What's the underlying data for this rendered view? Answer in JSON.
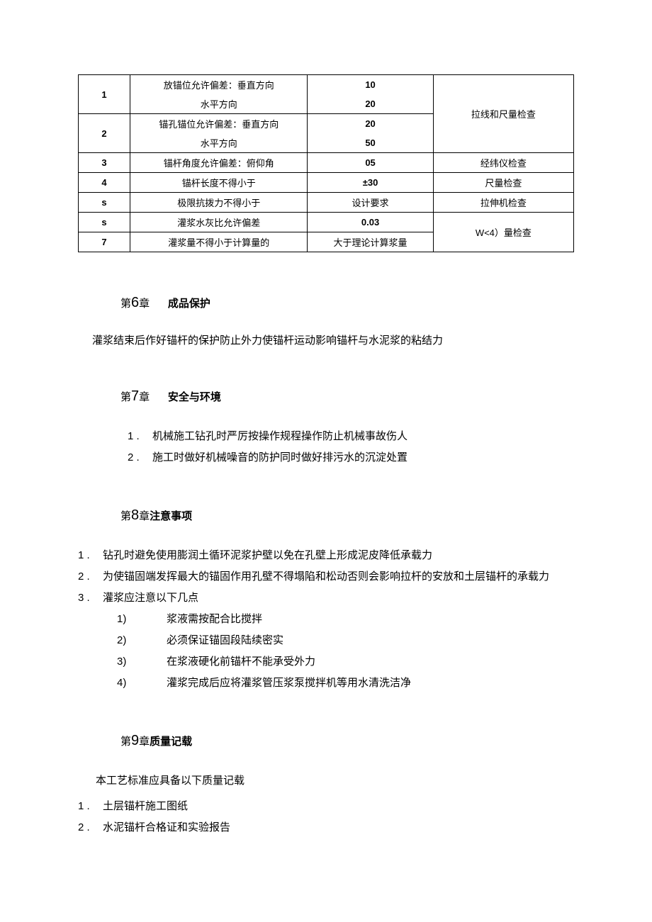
{
  "table": {
    "rows": [
      {
        "idx": "1",
        "item_a": "放锚位允许偏差：垂直方向",
        "val_a": "10",
        "item_b": "水平方向",
        "val_b": "20",
        "method": "拉线和尺量检查",
        "merge_method_with_next": true
      },
      {
        "idx": "2",
        "item_a": "锚孔锚位允许偏差：垂直方向",
        "val_a": "20",
        "item_b": "水平方向",
        "val_b": "50"
      },
      {
        "idx": "3",
        "item": "锚杆角度允许偏差：俯仰角",
        "val": "05",
        "method": "经纬仪检查"
      },
      {
        "idx": "4",
        "item": "锚杆长度不得小于",
        "val": "±30",
        "method": "尺量检查"
      },
      {
        "idx": "s",
        "item": "极限抗拨力不得小于",
        "val": "设计要求",
        "method": "拉伸机检查"
      },
      {
        "idx": "s",
        "item": "灌浆水灰比允许偏差",
        "val": "0.03",
        "method": "W<4）量检查",
        "merge_method_with_next": true
      },
      {
        "idx": "7",
        "item": "灌浆量不得小于计算量的",
        "val": "大于理论计算浆量"
      }
    ]
  },
  "ch6": {
    "label": "第6章",
    "title": "成品保护",
    "text": "灌浆结束后作好锚杆的保护防止外力使锚杆运动影响锚杆与水泥浆的粘结力"
  },
  "ch7": {
    "label": "第7章",
    "title": "安全与环境",
    "items": [
      "机械施工钻孔时严厉按操作规程操作防止机械事故伤人",
      "施工时做好机械噪音的防护同时做好排污水的沉淀处置"
    ]
  },
  "ch8": {
    "label": "第8章",
    "title": "注意事项",
    "items": [
      "钻孔时避免使用膨润土循环泥浆护壁以免在孔壁上形成泥皮降低承载力",
      "为使锚固端发挥最大的锚固作用孔壁不得塌陷和松动否则会影响拉杆的安放和土层锚杆的承载力",
      "灌浆应注意以下几点"
    ],
    "subitems": [
      "浆液需按配合比搅拌",
      "必须保证锚固段陆续密实",
      "在浆液硬化前锚杆不能承受外力",
      "灌浆完成后应将灌浆管压浆泵搅拌机等用水清洗洁净"
    ]
  },
  "ch9": {
    "label": "第9章",
    "title": "质量记载",
    "text": "本工艺标准应具备以下质量记载",
    "items": [
      "土层锚杆施工图纸",
      "水泥锚杆合格证和实验报告"
    ]
  }
}
